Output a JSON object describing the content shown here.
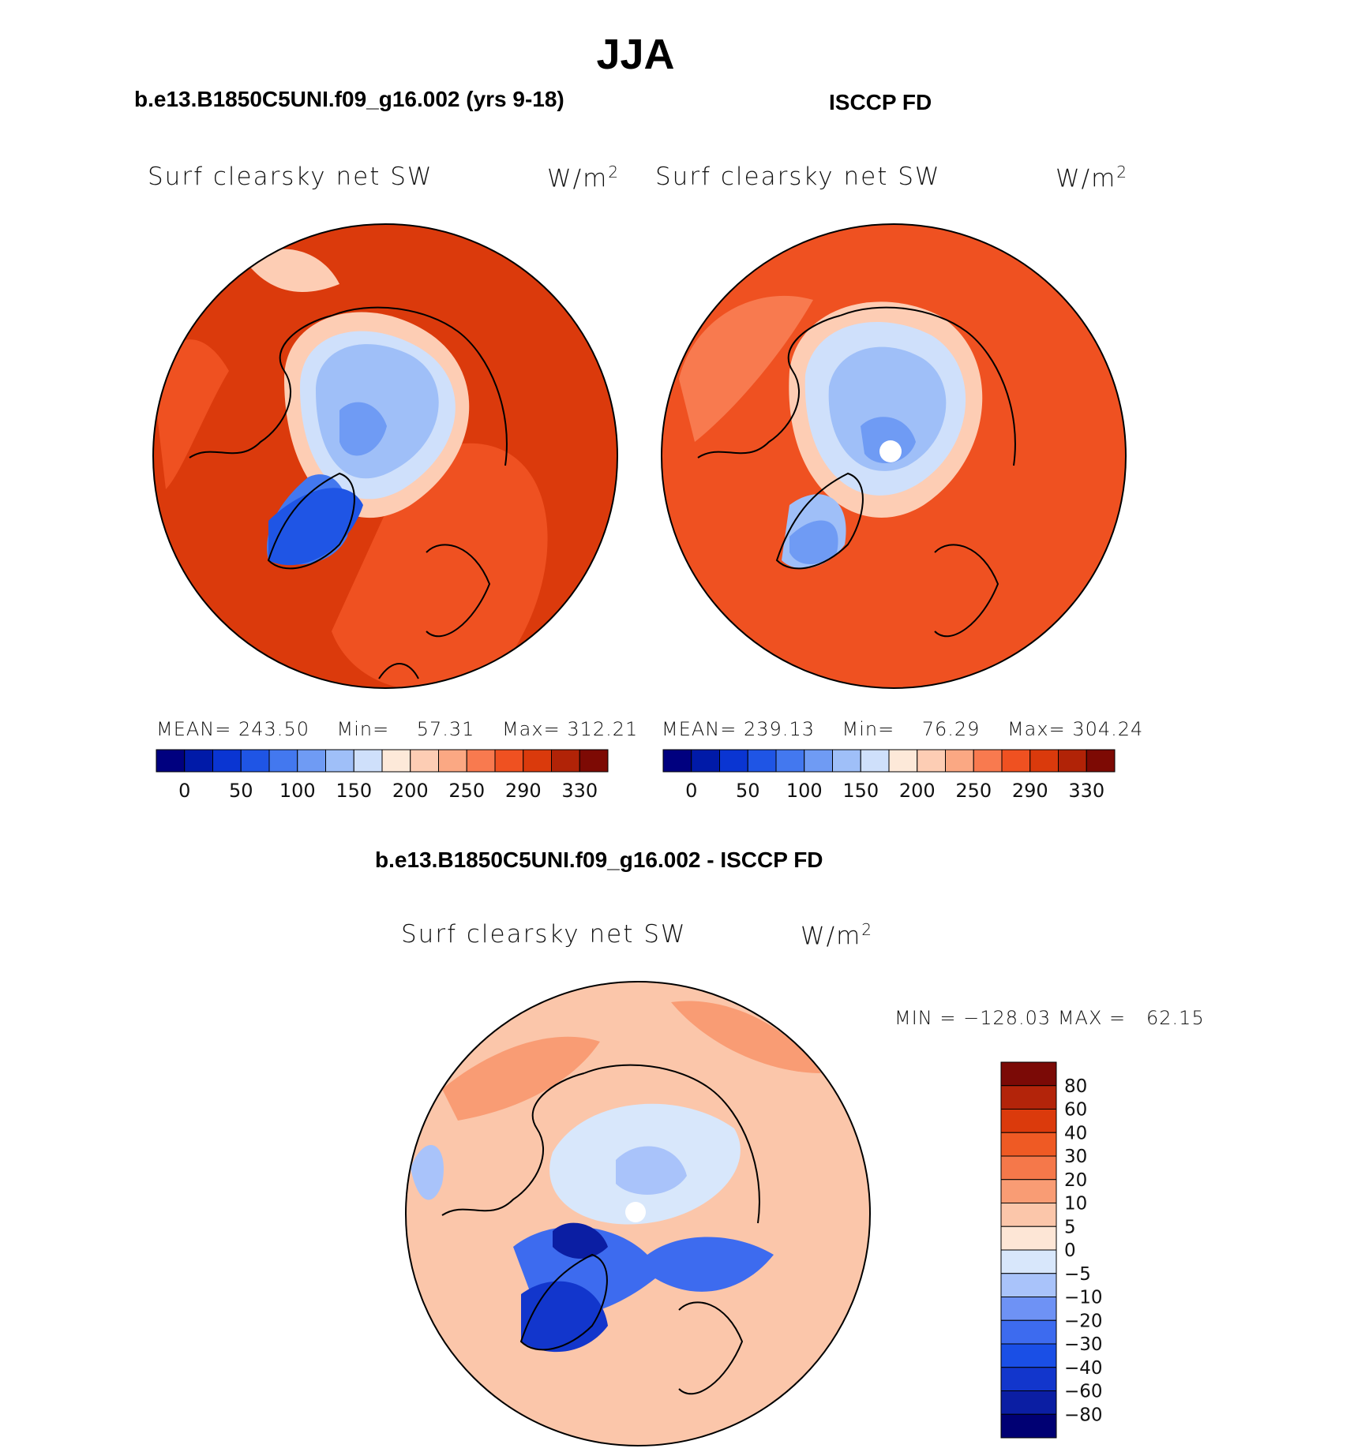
{
  "title": "JJA",
  "colors": {
    "absolute_palette": [
      "#00007f",
      "#001aa8",
      "#0a35d2",
      "#1f55e5",
      "#4378ef",
      "#6f9bf4",
      "#9fbff8",
      "#cfe0fb",
      "#fde9d9",
      "#fdcdb4",
      "#fba883",
      "#f87a4f",
      "#ef5121",
      "#da3a0c",
      "#b12307",
      "#7d0a04"
    ],
    "difference_palette": [
      "#000073",
      "#0b1ea3",
      "#1236cc",
      "#1a4fe6",
      "#3d6bef",
      "#6e92f5",
      "#a9c3fa",
      "#d8e7fb",
      "#fde6d6",
      "#fbc6aa",
      "#f99c74",
      "#f5784a",
      "#ef5a24",
      "#db3a0c",
      "#b3240a",
      "#7b0a06"
    ]
  },
  "panels": {
    "model": {
      "title": "b.e13.B1850C5UNI.f09_g16.002 (yrs 9-18)",
      "variable": "Surf clearsky net SW",
      "units_base": "W/m",
      "units_exp": "2",
      "stats": {
        "mean_label": "MEAN=",
        "mean": "243.50",
        "min_label": "Min=",
        "min": "57.31",
        "max_label": "Max=",
        "max": "312.21"
      }
    },
    "obs": {
      "title": "ISCCP FD",
      "variable": "Surf clearsky net SW",
      "units_base": "W/m",
      "units_exp": "2",
      "stats": {
        "mean_label": "MEAN=",
        "mean": "239.13",
        "min_label": "Min=",
        "min": "76.29",
        "max_label": "Max=",
        "max": "304.24"
      }
    },
    "diff": {
      "title": "b.e13.B1850C5UNI.f09_g16.002 - ISCCP FD",
      "variable": "Surf clearsky net SW",
      "units_base": "W/m",
      "units_exp": "2",
      "minmax": "MIN = −128.03 MAX =   62.15"
    }
  },
  "chart_data": [
    {
      "type": "heatmap",
      "projection": "north polar stereographic",
      "title": "b.e13.B1850C5UNI.f09_g16.002 (yrs 9-18)",
      "variable": "Surf clearsky net SW",
      "units": "W/m2",
      "stats": {
        "mean": 243.5,
        "min": 57.31,
        "max": 312.21
      },
      "colorbar": {
        "orientation": "horizontal",
        "tick_labels": [
          "0",
          "50",
          "100",
          "150",
          "200",
          "250",
          "290",
          "330"
        ],
        "n_colors": 16
      }
    },
    {
      "type": "heatmap",
      "projection": "north polar stereographic",
      "title": "ISCCP FD",
      "variable": "Surf clearsky net SW",
      "units": "W/m2",
      "stats": {
        "mean": 239.13,
        "min": 76.29,
        "max": 304.24
      },
      "colorbar": {
        "orientation": "horizontal",
        "tick_labels": [
          "0",
          "50",
          "100",
          "150",
          "200",
          "250",
          "290",
          "330"
        ],
        "n_colors": 16
      }
    },
    {
      "type": "heatmap",
      "projection": "north polar stereographic",
      "title": "b.e13.B1850C5UNI.f09_g16.002 - ISCCP FD",
      "variable": "Surf clearsky net SW",
      "units": "W/m2",
      "stats": {
        "min": -128.03,
        "max": 62.15
      },
      "colorbar": {
        "orientation": "vertical",
        "tick_labels": [
          "80",
          "60",
          "40",
          "30",
          "20",
          "10",
          "5",
          "0",
          "−5",
          "−10",
          "−20",
          "−30",
          "−40",
          "−60",
          "−80"
        ],
        "n_colors": 16
      }
    }
  ]
}
